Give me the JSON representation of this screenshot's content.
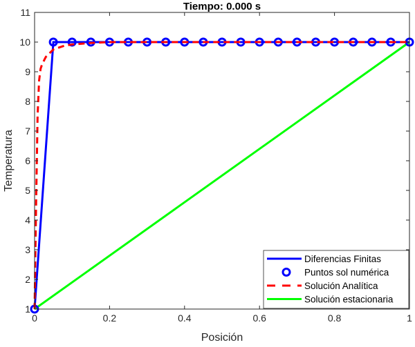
{
  "chart_data": {
    "type": "line",
    "title": "Tiempo: 0.000 s",
    "xlabel": "Posición",
    "ylabel": "Temperatura",
    "xlim": [
      0,
      1
    ],
    "ylim": [
      1,
      11
    ],
    "xticks": [
      0,
      0.2,
      0.4,
      0.6,
      0.8,
      1
    ],
    "xtick_labels": [
      "0",
      "0.2",
      "0.4",
      "0.6",
      "0.8",
      "1"
    ],
    "yticks": [
      1,
      2,
      3,
      4,
      5,
      6,
      7,
      8,
      9,
      10,
      11
    ],
    "ytick_labels": [
      "1",
      "2",
      "3",
      "4",
      "5",
      "6",
      "7",
      "8",
      "9",
      "10",
      "11"
    ],
    "grid": false,
    "legend_position": "bottom-right",
    "series": [
      {
        "name": "Diferencias Finitas",
        "style": "solid",
        "color": "#0000FF",
        "x": [
          0,
          0.05,
          0.1,
          0.15,
          0.2,
          0.25,
          0.3,
          0.35,
          0.4,
          0.45,
          0.5,
          0.55,
          0.6,
          0.65,
          0.7,
          0.75,
          0.8,
          0.85,
          0.9,
          0.95,
          1
        ],
        "y": [
          1,
          10,
          10,
          10,
          10,
          10,
          10,
          10,
          10,
          10,
          10,
          10,
          10,
          10,
          10,
          10,
          10,
          10,
          10,
          10,
          10
        ]
      },
      {
        "name": "Puntos sol numérica",
        "style": "markers",
        "color": "#0000FF",
        "x": [
          0,
          0.05,
          0.1,
          0.15,
          0.2,
          0.25,
          0.3,
          0.35,
          0.4,
          0.45,
          0.5,
          0.55,
          0.6,
          0.65,
          0.7,
          0.75,
          0.8,
          0.85,
          0.9,
          0.95,
          1
        ],
        "y": [
          1,
          10,
          10,
          10,
          10,
          10,
          10,
          10,
          10,
          10,
          10,
          10,
          10,
          10,
          10,
          10,
          10,
          10,
          10,
          10,
          10
        ]
      },
      {
        "name": "Solución Analítica",
        "style": "dashed",
        "color": "#FF0000",
        "x": [
          0,
          0.004,
          0.008,
          0.012,
          0.016,
          0.02,
          0.03,
          0.05,
          0.08,
          0.1,
          0.15,
          0.2,
          0.3,
          1
        ],
        "y": [
          1,
          4.5,
          7.5,
          8.7,
          9.1,
          9.25,
          9.5,
          9.75,
          9.88,
          9.92,
          9.97,
          10,
          10,
          10
        ]
      },
      {
        "name": "Solución estacionaria",
        "style": "solid",
        "color": "#00FF00",
        "x": [
          0,
          1
        ],
        "y": [
          1,
          10
        ]
      }
    ]
  }
}
